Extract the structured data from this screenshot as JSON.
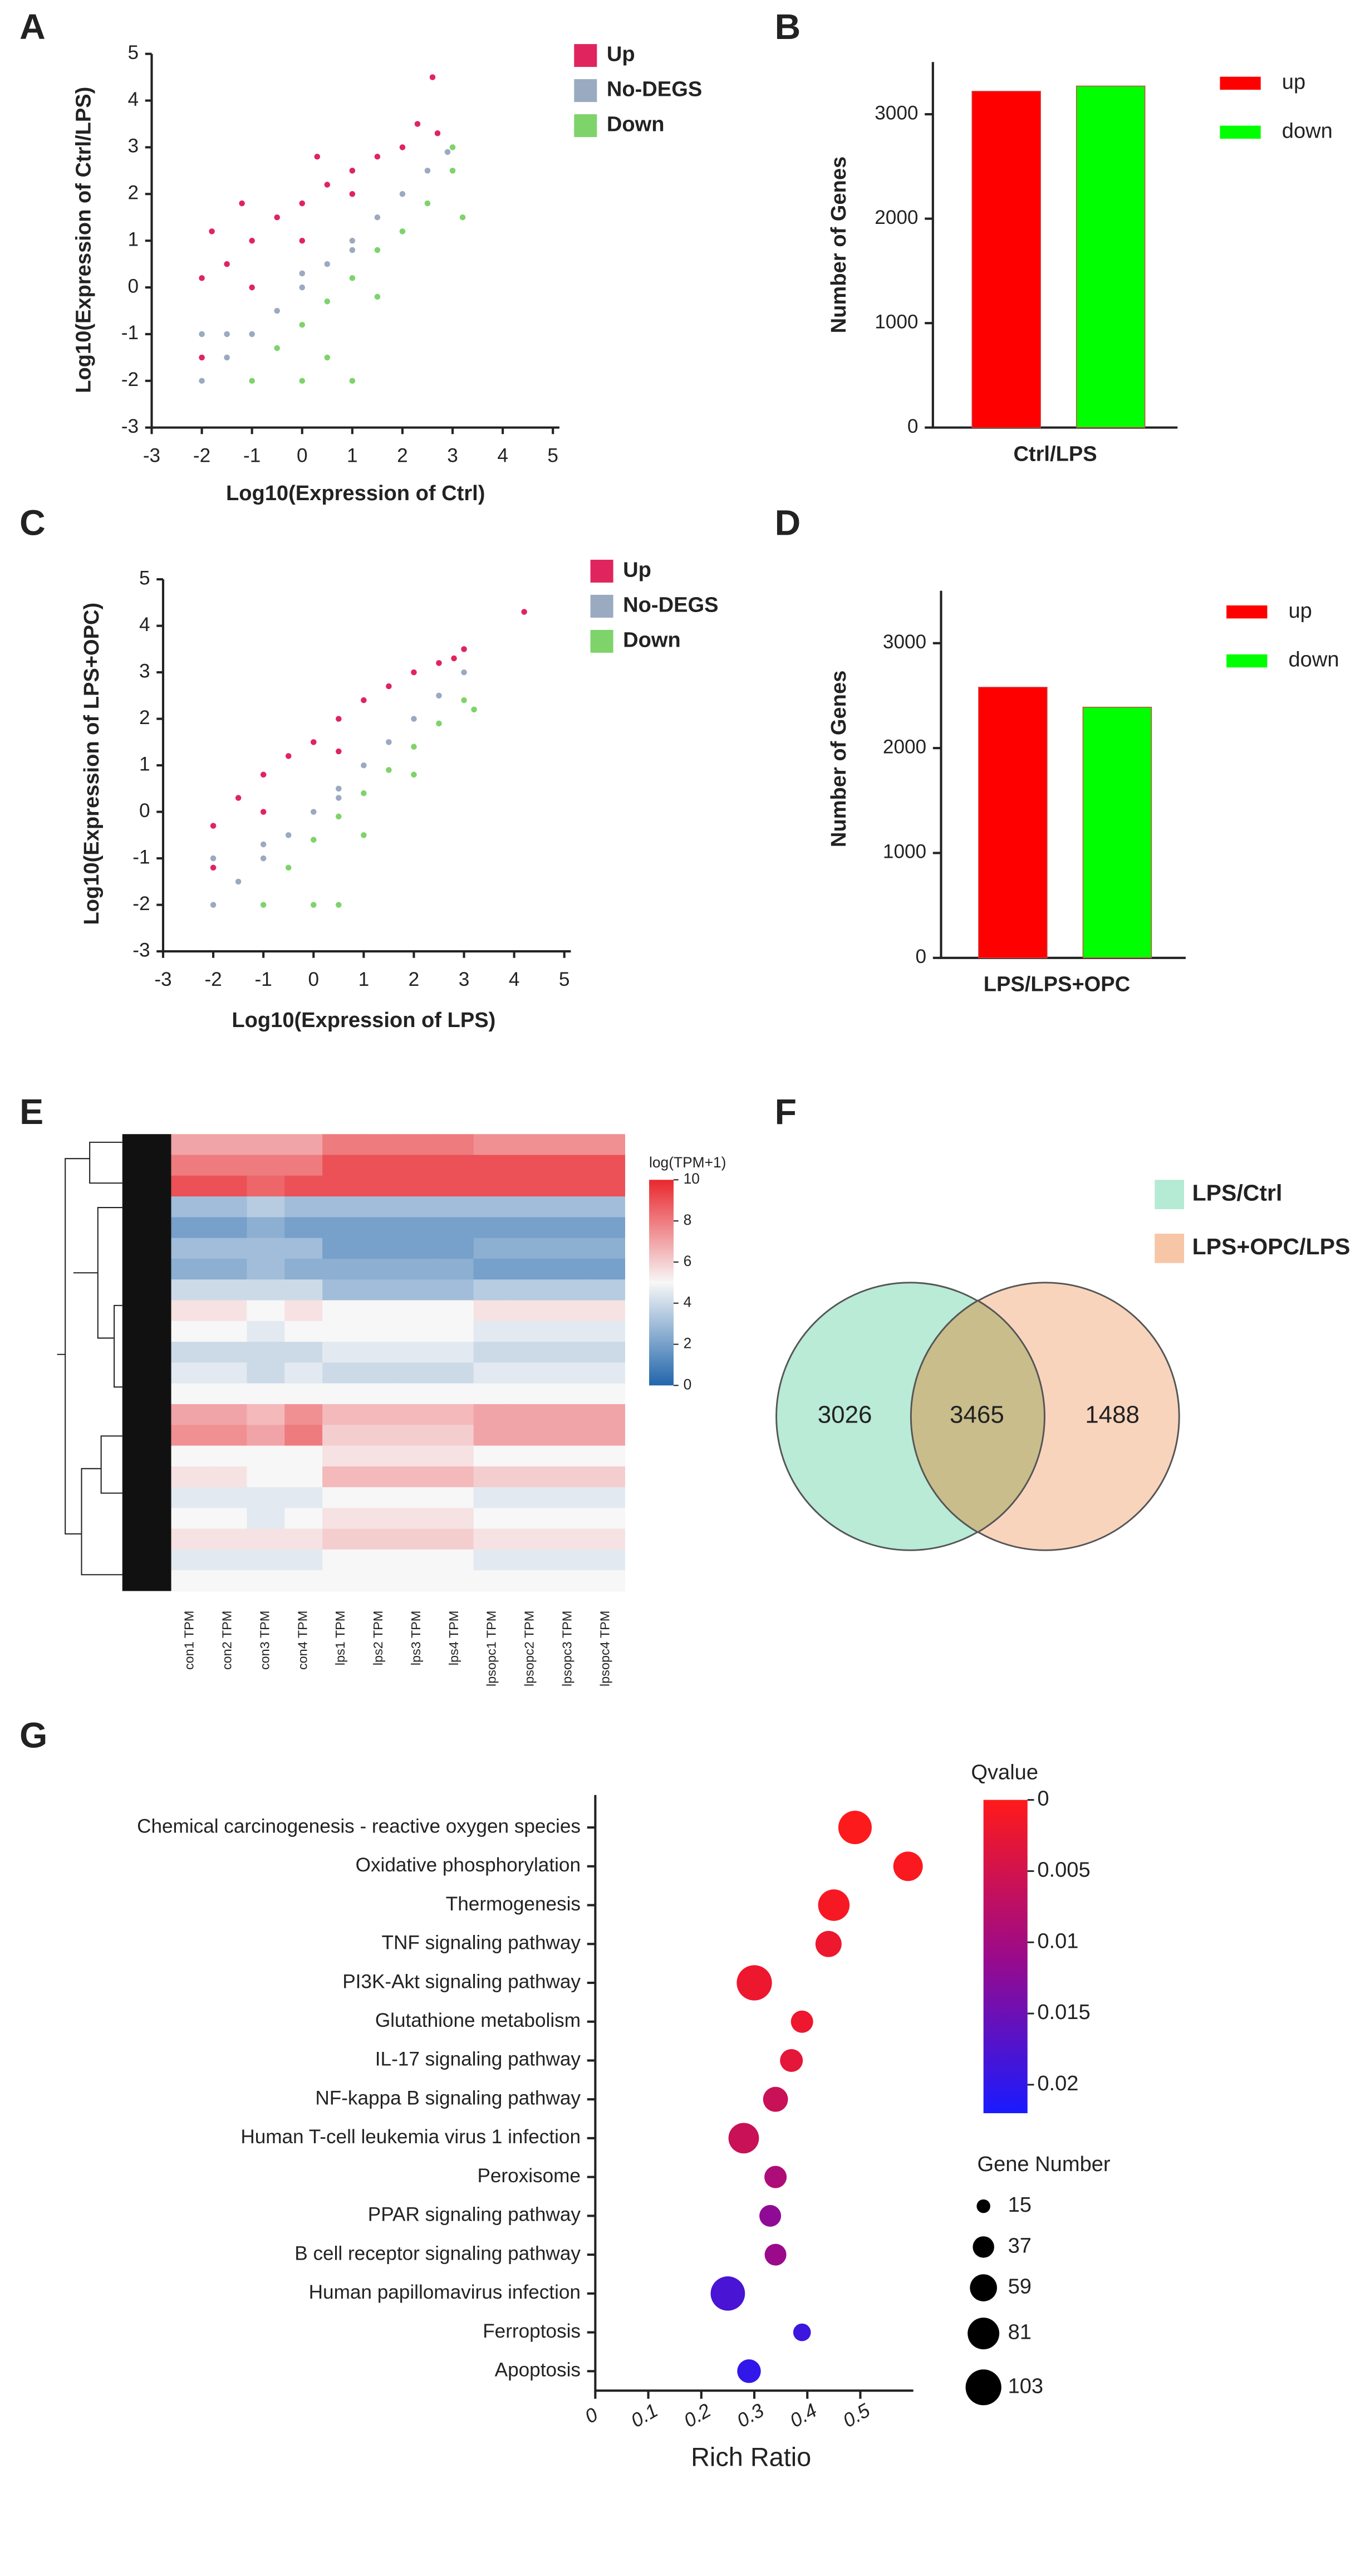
{
  "chart_data": [
    {
      "panel_label": "A",
      "type": "scatter",
      "xlabel": "Log10(Expression  of Ctrl)",
      "ylabel": "Log10(Expression of Ctrl/LPS)",
      "xlim": [
        -3,
        5
      ],
      "ylim": [
        -3,
        5
      ],
      "xticks": [
        -3,
        -2,
        -1,
        0,
        1,
        2,
        3,
        4,
        5
      ],
      "yticks": [
        -3,
        -2,
        -1,
        0,
        1,
        2,
        3,
        4,
        5
      ],
      "series": [
        {
          "name": "Up",
          "color": "#e0245e",
          "x": [
            -2,
            -2,
            -1.8,
            -1.5,
            -1.2,
            -1,
            -0.5,
            0,
            0.3,
            0.5,
            1,
            1.5,
            2,
            2.3,
            2.6,
            -1,
            0,
            1,
            2.7
          ],
          "values": [
            -1.5,
            0.2,
            1.2,
            0.5,
            1.8,
            1,
            1.5,
            1.8,
            2.8,
            2.2,
            2.5,
            2.8,
            3,
            3.5,
            4.5,
            0,
            1,
            2,
            3.3
          ]
        },
        {
          "name": "No-DEGS",
          "color": "#9aaac0",
          "x": [
            -2,
            -2,
            -1.5,
            -1,
            -0.5,
            0,
            0.5,
            1,
            1.5,
            2,
            2.5,
            2.9,
            -1.5,
            0,
            1
          ],
          "values": [
            -2,
            -1,
            -1.5,
            -1,
            -0.5,
            0,
            0.5,
            1,
            1.5,
            2,
            2.5,
            2.9,
            -1,
            0.3,
            0.8
          ]
        },
        {
          "name": "Down",
          "color": "#7ed36a",
          "x": [
            -1,
            0,
            1,
            -0.5,
            0,
            0.5,
            1,
            1.5,
            2,
            2.5,
            3,
            3.2,
            3,
            1.5,
            0.5
          ],
          "values": [
            -2,
            -2,
            -2,
            -1.3,
            -0.8,
            -0.3,
            0.2,
            0.8,
            1.2,
            1.8,
            2.5,
            1.5,
            3,
            -0.2,
            -1.5
          ]
        }
      ]
    },
    {
      "panel_label": "B",
      "type": "bar",
      "ylabel": "Number of Genes",
      "categories": [
        "Ctrl/LPS"
      ],
      "ylim": [
        0,
        3500
      ],
      "yticks": [
        0,
        1000,
        2000,
        3000
      ],
      "series": [
        {
          "name": "up",
          "color": "#ff0000",
          "values": [
            3220
          ]
        },
        {
          "name": "down",
          "color": "#00ff00",
          "values": [
            3270
          ]
        }
      ]
    },
    {
      "panel_label": "C",
      "type": "scatter",
      "xlabel": "Log10(Expression  of LPS)",
      "ylabel": "Log10(Expression of LPS+OPC)",
      "xlim": [
        -3,
        5
      ],
      "ylim": [
        -3,
        5
      ],
      "xticks": [
        -3,
        -2,
        -1,
        0,
        1,
        2,
        3,
        4,
        5
      ],
      "yticks": [
        -3,
        -2,
        -1,
        0,
        1,
        2,
        3,
        4,
        5
      ],
      "series": [
        {
          "name": "Up",
          "color": "#e0245e",
          "x": [
            -2,
            -2,
            -1.5,
            -1,
            -0.5,
            0,
            0.5,
            1,
            1.5,
            2,
            2.5,
            3,
            4.2,
            -1,
            0.5,
            2.8
          ],
          "values": [
            -1.2,
            -0.3,
            0.3,
            0.8,
            1.2,
            1.5,
            2,
            2.4,
            2.7,
            3,
            3.2,
            3.5,
            4.3,
            0,
            1.3,
            3.3
          ]
        },
        {
          "name": "No-DEGS",
          "color": "#9aaac0",
          "x": [
            -2,
            -2,
            -1.5,
            -1,
            -0.5,
            0,
            0.5,
            1,
            1.5,
            2,
            2.5,
            3,
            -1,
            0.5
          ],
          "values": [
            -2,
            -1,
            -1.5,
            -1,
            -0.5,
            0,
            0.5,
            1,
            1.5,
            2,
            2.5,
            3,
            -0.7,
            0.3
          ]
        },
        {
          "name": "Down",
          "color": "#7ed36a",
          "x": [
            -1,
            0,
            0.5,
            -0.5,
            0,
            0.5,
            1,
            1.5,
            2,
            2.5,
            3,
            3.2,
            1,
            2
          ],
          "values": [
            -2,
            -2,
            -2,
            -1.2,
            -0.6,
            -0.1,
            0.4,
            0.9,
            1.4,
            1.9,
            2.4,
            2.2,
            -0.5,
            0.8
          ]
        }
      ]
    },
    {
      "panel_label": "D",
      "type": "bar",
      "ylabel": "Number of Genes",
      "categories": [
        "LPS/LPS+OPC"
      ],
      "ylim": [
        0,
        3500
      ],
      "yticks": [
        0,
        1000,
        2000,
        3000
      ],
      "series": [
        {
          "name": "up",
          "color": "#ff0000",
          "values": [
            2580
          ]
        },
        {
          "name": "down",
          "color": "#00ff00",
          "values": [
            2390
          ]
        }
      ]
    },
    {
      "panel_label": "E",
      "type": "heatmap",
      "colorbar_label": "log(TPM+1)",
      "clim": [
        0,
        10
      ],
      "cticks": [
        0,
        2,
        4,
        6,
        8,
        10
      ],
      "colormap": [
        "#2166ac",
        "#f7f7f7",
        "#e8282e"
      ],
      "categories": [
        "con1 TPM",
        "con2 TPM",
        "con3 TPM",
        "con4 TPM",
        "lps1 TPM",
        "lps2 TPM",
        "lps3 TPM",
        "lps4 TPM",
        "lpsopc1 TPM",
        "lpsopc2 TPM",
        "lpsopc3 TPM",
        "lpsopc4 TPM"
      ],
      "values": [
        [
          7,
          7,
          7,
          7,
          8,
          8,
          8,
          8,
          7.5,
          7.5,
          7.5,
          7.5
        ],
        [
          8,
          8,
          8,
          8,
          9,
          9,
          9,
          9,
          9,
          9,
          9,
          9
        ],
        [
          9,
          9,
          8.5,
          9,
          9,
          9,
          9,
          9,
          9,
          9,
          9,
          9
        ],
        [
          3,
          3,
          3.5,
          3,
          3,
          3,
          3,
          3,
          3,
          3,
          3,
          3
        ],
        [
          2,
          2,
          2.5,
          2,
          2,
          2,
          2,
          2,
          2,
          2,
          2,
          2
        ],
        [
          3,
          3,
          3,
          3,
          2,
          2,
          2,
          2,
          2.5,
          2.5,
          2.5,
          2.5
        ],
        [
          2.5,
          2.5,
          3,
          2.5,
          2.5,
          2.5,
          2.5,
          2.5,
          2,
          2,
          2,
          2
        ],
        [
          4,
          4,
          4,
          4,
          3,
          3,
          3,
          3,
          3.5,
          3.5,
          3.5,
          3.5
        ],
        [
          5.5,
          5.5,
          5,
          5.5,
          5,
          5,
          5,
          5,
          5.5,
          5.5,
          5.5,
          5.5
        ],
        [
          5,
          5,
          4.5,
          5,
          5,
          5,
          5,
          5,
          4.5,
          4.5,
          4.5,
          4.5
        ],
        [
          4,
          4,
          4,
          4,
          4.5,
          4.5,
          4.5,
          4.5,
          4,
          4,
          4,
          4
        ],
        [
          4.5,
          4.5,
          4,
          4.5,
          4,
          4,
          4,
          4,
          4.5,
          4.5,
          4.5,
          4.5
        ],
        [
          5,
          5,
          5,
          5,
          5,
          5,
          5,
          5,
          5,
          5,
          5,
          5
        ],
        [
          7,
          7,
          6.5,
          7.5,
          6.5,
          6.5,
          6.5,
          6.5,
          7,
          7,
          7,
          7
        ],
        [
          7.5,
          7.5,
          7,
          8,
          6,
          6,
          6,
          6,
          7,
          7,
          7,
          7
        ],
        [
          5,
          5,
          5,
          5,
          5.5,
          5.5,
          5.5,
          5.5,
          5,
          5,
          5,
          5
        ],
        [
          5.5,
          5.5,
          5,
          5,
          6.5,
          6.5,
          6.5,
          6.5,
          6,
          6,
          6,
          6
        ],
        [
          4.5,
          4.5,
          4.5,
          4.5,
          5,
          5,
          5,
          5,
          4.5,
          4.5,
          4.5,
          4.5
        ],
        [
          5,
          5,
          4.5,
          5,
          5.5,
          5.5,
          5.5,
          5.5,
          5,
          5,
          5,
          5
        ],
        [
          5.5,
          5.5,
          5.5,
          5.5,
          6,
          6,
          6,
          6,
          5.5,
          5.5,
          5.5,
          5.5
        ],
        [
          4.5,
          4.5,
          4.5,
          4.5,
          5,
          5,
          5,
          5,
          4.5,
          4.5,
          4.5,
          4.5
        ],
        [
          5,
          5,
          5,
          5,
          5,
          5,
          5,
          5,
          5,
          5,
          5,
          5
        ]
      ]
    },
    {
      "panel_label": "F",
      "type": "venn",
      "series": [
        {
          "name": "LPS/Ctrl",
          "color": "#b5ead5"
        },
        {
          "name": "LPS+OPC/LPS",
          "color": "#f7c6a7"
        }
      ],
      "values": [
        3026,
        3465,
        1488
      ]
    },
    {
      "panel_label": "G",
      "type": "bubble",
      "xlabel": "Rich Ratio",
      "xlim": [
        0,
        0.6
      ],
      "xticks": [
        0,
        0.1,
        0.2,
        0.3,
        0.4,
        0.5
      ],
      "categories": [
        "Chemical carcinogenesis - reactive oxygen species",
        "Oxidative phosphorylation",
        "Thermogenesis",
        "TNF signaling pathway",
        "PI3K-Akt signaling pathway",
        "Glutathione metabolism",
        "IL-17 signaling pathway",
        "NF-kappa B signaling pathway",
        "Human T-cell leukemia virus 1 infection",
        "Peroxisome",
        "PPAR signaling pathway",
        "B cell receptor signaling pathway",
        "Human papillomavirus infection",
        "Ferroptosis",
        "Apoptosis"
      ],
      "values": [
        0.49,
        0.59,
        0.45,
        0.44,
        0.3,
        0.39,
        0.37,
        0.34,
        0.28,
        0.34,
        0.33,
        0.34,
        0.25,
        0.39,
        0.29
      ],
      "qvalue": [
        0.0003,
        0.0005,
        0.001,
        0.002,
        0.002,
        0.002,
        0.003,
        0.006,
        0.006,
        0.009,
        0.012,
        0.011,
        0.018,
        0.019,
        0.02
      ],
      "gene_number": [
        90,
        70,
        80,
        55,
        100,
        40,
        42,
        50,
        75,
        40,
        38,
        38,
        95,
        25,
        45
      ],
      "color_label": "Qvalue",
      "clim": [
        0,
        0.022
      ],
      "cticks": [
        0,
        0.005,
        0.01,
        0.015,
        0.02
      ],
      "colormap": [
        "#ff1a1a",
        "#9b0a8a",
        "#1a1aff"
      ],
      "size_label": "Gene Number",
      "size_ticks": [
        15,
        37,
        59,
        81,
        103
      ]
    }
  ]
}
